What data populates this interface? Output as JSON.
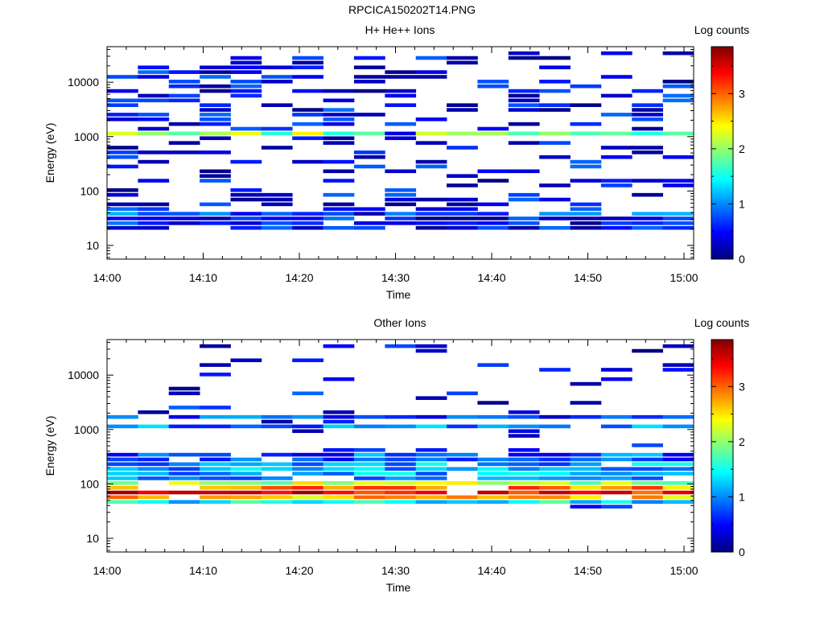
{
  "page_title": "RPCICA150202T14.PNG",
  "colormap_stops": [
    "#00007f",
    "#0000ff",
    "#007fff",
    "#00ffff",
    "#7fff7f",
    "#ffff00",
    "#ff7f00",
    "#ff0000",
    "#7f0000"
  ],
  "chart_data": [
    {
      "type": "heatmap",
      "title": "H+ He++ Ions",
      "xlabel": "Time",
      "ylabel": "Energy (eV)",
      "colorbar_label": "Log counts",
      "colorbar_range": [
        0,
        3.85
      ],
      "colorbar_ticks": [
        "0",
        "1",
        "2",
        "3"
      ],
      "y_scale": "log",
      "y_range": [
        5.6,
        45000
      ],
      "y_ticks": [
        "10",
        "100",
        "1000",
        "10000"
      ],
      "x_range_minutes": [
        0,
        61
      ],
      "x_ticks": [
        "14:00",
        "14:10",
        "14:20",
        "14:30",
        "14:40",
        "14:50",
        "15:00"
      ],
      "time_bins": 19,
      "energy_bins": 45,
      "band_cells": [
        {
          "from": 6,
          "to": 8,
          "value": 0.5
        },
        {
          "from": 9,
          "to": 9,
          "value": 0.8
        },
        {
          "from": 26,
          "to": 26,
          "value": 2.0
        }
      ],
      "pattern_seed": 7,
      "sparse_density": 0.33
    },
    {
      "type": "heatmap",
      "title": "Other Ions",
      "xlabel": "Time",
      "ylabel": "Energy (eV)",
      "colorbar_label": "Log counts",
      "colorbar_range": [
        0,
        3.85
      ],
      "colorbar_ticks": [
        "0",
        "1",
        "2",
        "3"
      ],
      "y_scale": "log",
      "y_range": [
        5.6,
        45000
      ],
      "y_ticks": [
        "10",
        "100",
        "1000",
        "10000"
      ],
      "x_range_minutes": [
        0,
        61
      ],
      "x_ticks": [
        "14:00",
        "14:10",
        "14:20",
        "14:30",
        "14:40",
        "14:50",
        "15:00"
      ],
      "time_bins": 19,
      "energy_bins": 45,
      "band_cells": [
        {
          "from": 10,
          "to": 10,
          "value": 1.4
        },
        {
          "from": 11,
          "to": 11,
          "value": 2.7
        },
        {
          "from": 12,
          "to": 12,
          "value": 3.3
        },
        {
          "from": 13,
          "to": 13,
          "value": 2.9
        },
        {
          "from": 14,
          "to": 14,
          "value": 2.1
        },
        {
          "from": 15,
          "to": 18,
          "value": 1.1
        },
        {
          "from": 19,
          "to": 20,
          "value": 0.8
        },
        {
          "from": 26,
          "to": 26,
          "value": 1.0
        },
        {
          "from": 28,
          "to": 28,
          "value": 0.7
        }
      ],
      "pattern_seed": 19,
      "sparse_density": 0.12
    }
  ]
}
